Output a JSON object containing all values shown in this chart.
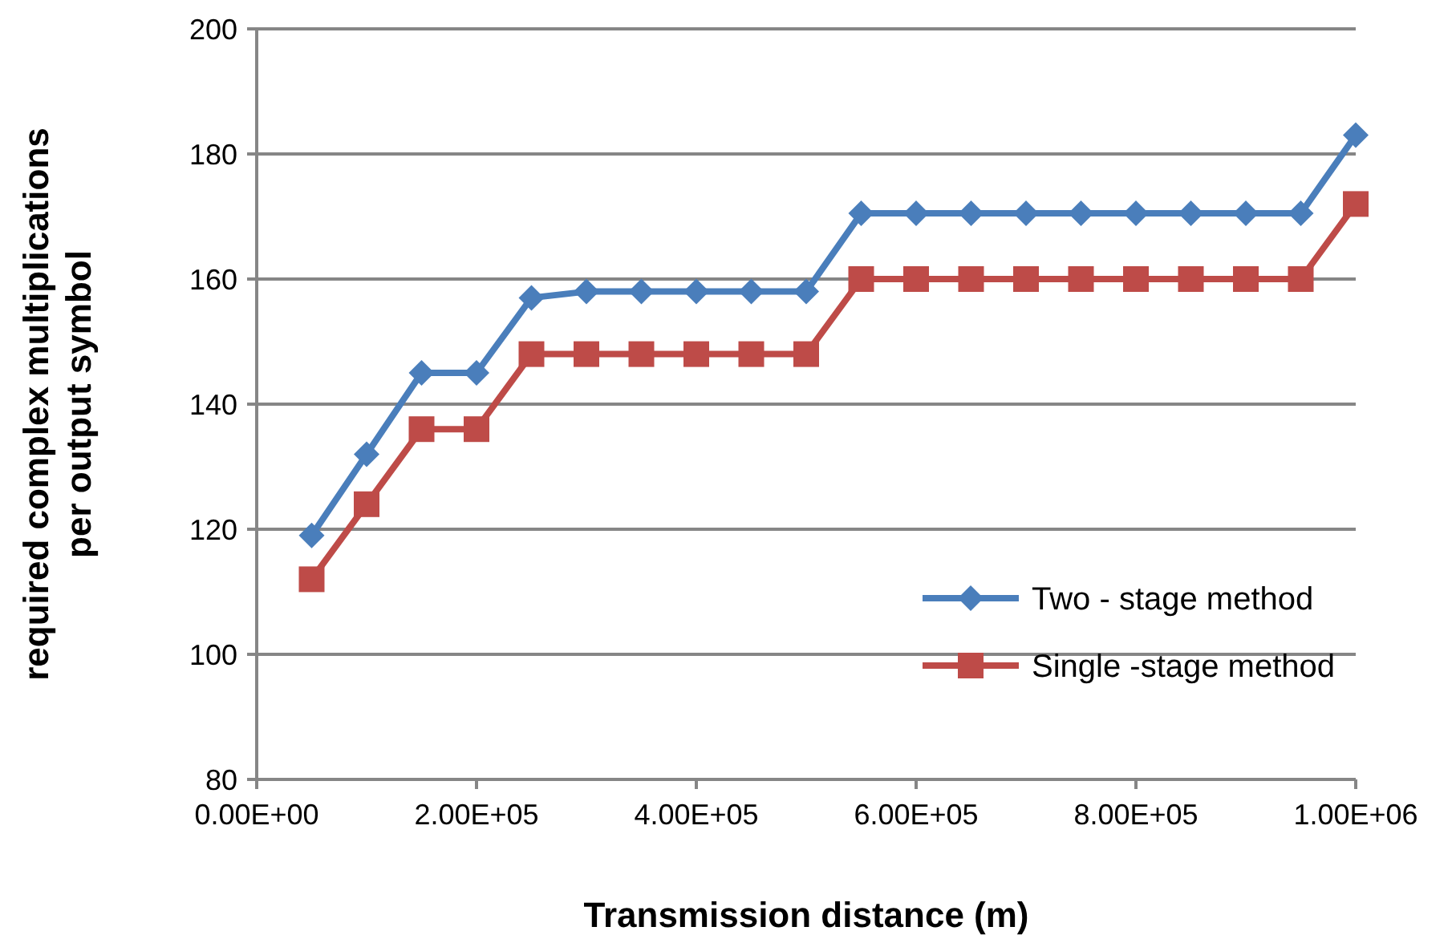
{
  "chart_data": {
    "type": "line",
    "xlabel": "Transmission distance (m)",
    "ylabel": "required complex multiplications per output symbol",
    "x": [
      50000,
      100000,
      150000,
      200000,
      250000,
      300000,
      350000,
      400000,
      450000,
      500000,
      550000,
      600000,
      650000,
      700000,
      750000,
      800000,
      850000,
      900000,
      950000,
      1000000
    ],
    "xlim": [
      0,
      1000000
    ],
    "xticks": [
      {
        "value": 0,
        "label": "0.00E+00"
      },
      {
        "value": 200000,
        "label": "2.00E+05"
      },
      {
        "value": 400000,
        "label": "4.00E+05"
      },
      {
        "value": 600000,
        "label": "6.00E+05"
      },
      {
        "value": 800000,
        "label": "8.00E+05"
      },
      {
        "value": 1000000,
        "label": "1.00E+06"
      }
    ],
    "ylim": [
      80,
      200
    ],
    "yticks": [
      80,
      100,
      120,
      140,
      160,
      180,
      200
    ],
    "grid": "y",
    "legend": "bottom right",
    "series": [
      {
        "name": "Two - stage method",
        "color": "#4a7ebb",
        "marker": "diamond",
        "values": [
          119,
          132,
          145,
          145,
          157,
          158,
          158,
          158,
          158,
          158,
          170.5,
          170.5,
          170.5,
          170.5,
          170.5,
          170.5,
          170.5,
          170.5,
          170.5,
          183
        ]
      },
      {
        "name": "Single -stage method",
        "color": "#be4b48",
        "marker": "square",
        "values": [
          112,
          124,
          136,
          136,
          148,
          148,
          148,
          148,
          148,
          148,
          160,
          160,
          160,
          160,
          160,
          160,
          160,
          160,
          160,
          172
        ]
      }
    ]
  }
}
